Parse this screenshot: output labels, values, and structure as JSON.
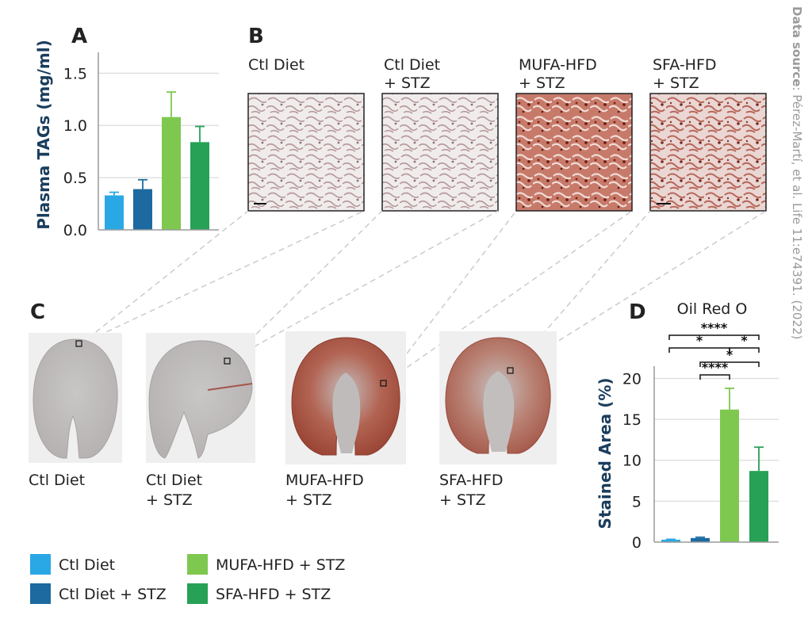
{
  "source": {
    "label": "Data source",
    "text": ": Pérez-Martí, et al. Life 11:e74391. (2022)"
  },
  "panels": {
    "a": "A",
    "b": "B",
    "c": "C",
    "d": "D"
  },
  "legend": [
    {
      "label": "Ctl Diet",
      "color": "#2aa8e5"
    },
    {
      "label": "Ctl Diet + STZ",
      "color": "#1c6aa0"
    },
    {
      "label": "MUFA-HFD + STZ",
      "color": "#7ec850"
    },
    {
      "label": "SFA-HFD + STZ",
      "color": "#27a155"
    }
  ],
  "histology_b": [
    {
      "line1": "Ctl Diet",
      "line2": "",
      "stain": "light",
      "scalebar": true
    },
    {
      "line1": "Ctl Diet",
      "line2": "+ STZ",
      "stain": "light",
      "scalebar": false
    },
    {
      "line1": "MUFA-HFD",
      "line2": "+ STZ",
      "stain": "heavy",
      "scalebar": false
    },
    {
      "line1": "SFA-HFD",
      "line2": "+ STZ",
      "stain": "medium",
      "scalebar": true
    }
  ],
  "kidney_c": [
    {
      "line1": "Ctl Diet",
      "line2": "",
      "stain": "none"
    },
    {
      "line1": "Ctl Diet",
      "line2": "+ STZ",
      "stain": "none"
    },
    {
      "line1": "MUFA-HFD",
      "line2": "+ STZ",
      "stain": "heavy"
    },
    {
      "line1": "SFA-HFD",
      "line2": "+ STZ",
      "stain": "medium"
    }
  ],
  "chart_data": [
    {
      "id": "A",
      "type": "bar",
      "title": "",
      "xlabel": "",
      "ylabel": "Plasma TAGs (mg/ml)",
      "ylim": [
        0,
        1.7
      ],
      "yticks": [
        "0.0",
        "0.5",
        "1.0",
        "1.5"
      ],
      "ytick_values": [
        0,
        0.5,
        1.0,
        1.5
      ],
      "grid": true,
      "categories": [
        "Ctl Diet",
        "Ctl Diet + STZ",
        "MUFA-HFD + STZ",
        "SFA-HFD + STZ"
      ],
      "values": [
        0.33,
        0.39,
        1.08,
        0.84
      ],
      "errors": [
        0.03,
        0.09,
        0.24,
        0.15
      ],
      "colors": [
        "#2aa8e5",
        "#1c6aa0",
        "#7ec850",
        "#27a155"
      ]
    },
    {
      "id": "D",
      "type": "bar",
      "title": "Oil Red O",
      "xlabel": "",
      "ylabel": "Stained Area (%)",
      "ylim": [
        0,
        21.5
      ],
      "yticks": [
        "0",
        "5",
        "10",
        "15",
        "20"
      ],
      "ytick_values": [
        0,
        5,
        10,
        15,
        20
      ],
      "grid": true,
      "categories": [
        "Ctl Diet",
        "Ctl Diet + STZ",
        "MUFA-HFD + STZ",
        "SFA-HFD + STZ"
      ],
      "values": [
        0.3,
        0.5,
        16.2,
        8.7
      ],
      "errors": [
        0.05,
        0.1,
        2.6,
        2.9
      ],
      "colors": [
        "#2aa8e5",
        "#1c6aa0",
        "#7ec850",
        "#27a155"
      ],
      "significance": [
        {
          "from": 0,
          "to": 3,
          "label": "****"
        },
        {
          "from": 0,
          "to": 2,
          "label": "*"
        },
        {
          "from": 2,
          "to": 3,
          "label": "*"
        },
        {
          "from": 1,
          "to": 3,
          "label": "*"
        },
        {
          "from": 1,
          "to": 2,
          "label": "****"
        }
      ]
    }
  ]
}
